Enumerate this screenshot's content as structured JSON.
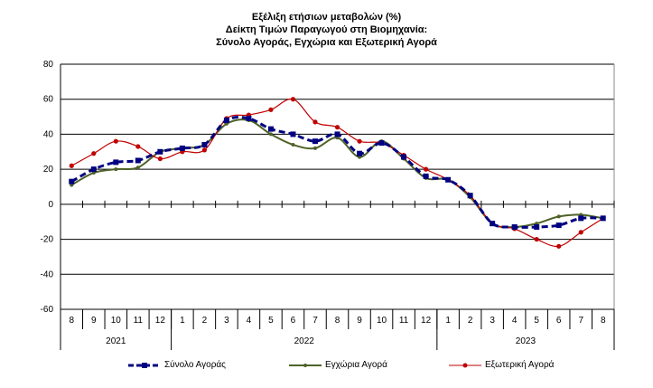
{
  "chart_data": {
    "type": "line",
    "title": [
      "Εξέλιξη ετήσιων μεταβολών (%)",
      "Δείκτη Τιμών Παραγωγού στη Βιομηχανία:",
      "Σύνολο Αγοράς, Εγχώρια και Εξωτερική Αγορά"
    ],
    "xlabel": "",
    "ylabel": "",
    "ylim": [
      -60,
      80
    ],
    "yticks": [
      -60,
      -40,
      -20,
      0,
      20,
      40,
      60,
      80
    ],
    "grid": true,
    "legend_position": "bottom",
    "categories": [
      "8",
      "9",
      "10",
      "11",
      "12",
      "1",
      "2",
      "3",
      "4",
      "5",
      "6",
      "7",
      "8",
      "9",
      "10",
      "11",
      "12",
      "1",
      "2",
      "3",
      "4",
      "5",
      "6",
      "7",
      "8"
    ],
    "year_groups": [
      {
        "label": "2021",
        "count": 5
      },
      {
        "label": "2022",
        "count": 12
      },
      {
        "label": "2023",
        "count": 8
      }
    ],
    "series": [
      {
        "name": "Σύνολο Αγοράς",
        "color": "#000080",
        "style": "dashed-square",
        "values": [
          13,
          20,
          24,
          25,
          30,
          32,
          34,
          48,
          49,
          43,
          40,
          36,
          40,
          29,
          35,
          27,
          16,
          14,
          5,
          -11,
          -13,
          -13,
          -12,
          -8,
          -8
        ]
      },
      {
        "name": "Εγχώρια Αγορά",
        "color": "#4f6228",
        "style": "solid-plus",
        "values": [
          11,
          18,
          20,
          21,
          30,
          32,
          34,
          46,
          48,
          40,
          34,
          32,
          38,
          27,
          36,
          26,
          15,
          14,
          4,
          -11,
          -13,
          -11,
          -7,
          -6,
          -8
        ]
      },
      {
        "name": "Εξωτερική Αγορά",
        "color": "#c00000",
        "style": "solid-dot",
        "values": [
          22,
          29,
          36,
          33,
          26,
          30,
          31,
          49,
          51,
          54,
          60,
          47,
          44,
          36,
          35,
          28,
          20,
          14,
          5,
          -11,
          -14,
          -20,
          -24,
          -16,
          -8
        ]
      }
    ]
  }
}
